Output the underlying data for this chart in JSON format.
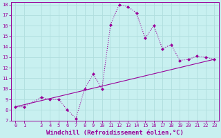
{
  "xlabel": "Windchill (Refroidissement éolien,°C)",
  "background_color": "#c8f0f0",
  "line_color": "#990099",
  "grid_color": "#b0dede",
  "xlim": [
    -0.5,
    23.5
  ],
  "ylim": [
    7,
    18.2
  ],
  "yticks": [
    7,
    8,
    9,
    10,
    11,
    12,
    13,
    14,
    15,
    16,
    17,
    18
  ],
  "xticks": [
    0,
    1,
    3,
    4,
    5,
    6,
    7,
    8,
    9,
    10,
    11,
    12,
    13,
    14,
    15,
    16,
    17,
    18,
    19,
    20,
    21,
    22,
    23
  ],
  "curve1_x": [
    0,
    1,
    3,
    4,
    5,
    6,
    7,
    8,
    9,
    10,
    11,
    12,
    13,
    14,
    15,
    16,
    17,
    18,
    19,
    20,
    21,
    22,
    23
  ],
  "curve1_y": [
    8.3,
    8.3,
    9.2,
    9.0,
    9.0,
    8.0,
    7.2,
    10.0,
    11.4,
    10.0,
    16.1,
    18.0,
    17.8,
    17.2,
    14.8,
    16.0,
    13.8,
    14.2,
    12.7,
    12.8,
    13.1,
    13.0,
    12.8
  ],
  "curve2_x": [
    0,
    23
  ],
  "curve2_y": [
    8.3,
    12.8
  ],
  "tick_fontsize": 5,
  "xlabel_fontsize": 6.5,
  "marker_size": 2.0,
  "linewidth": 0.8
}
